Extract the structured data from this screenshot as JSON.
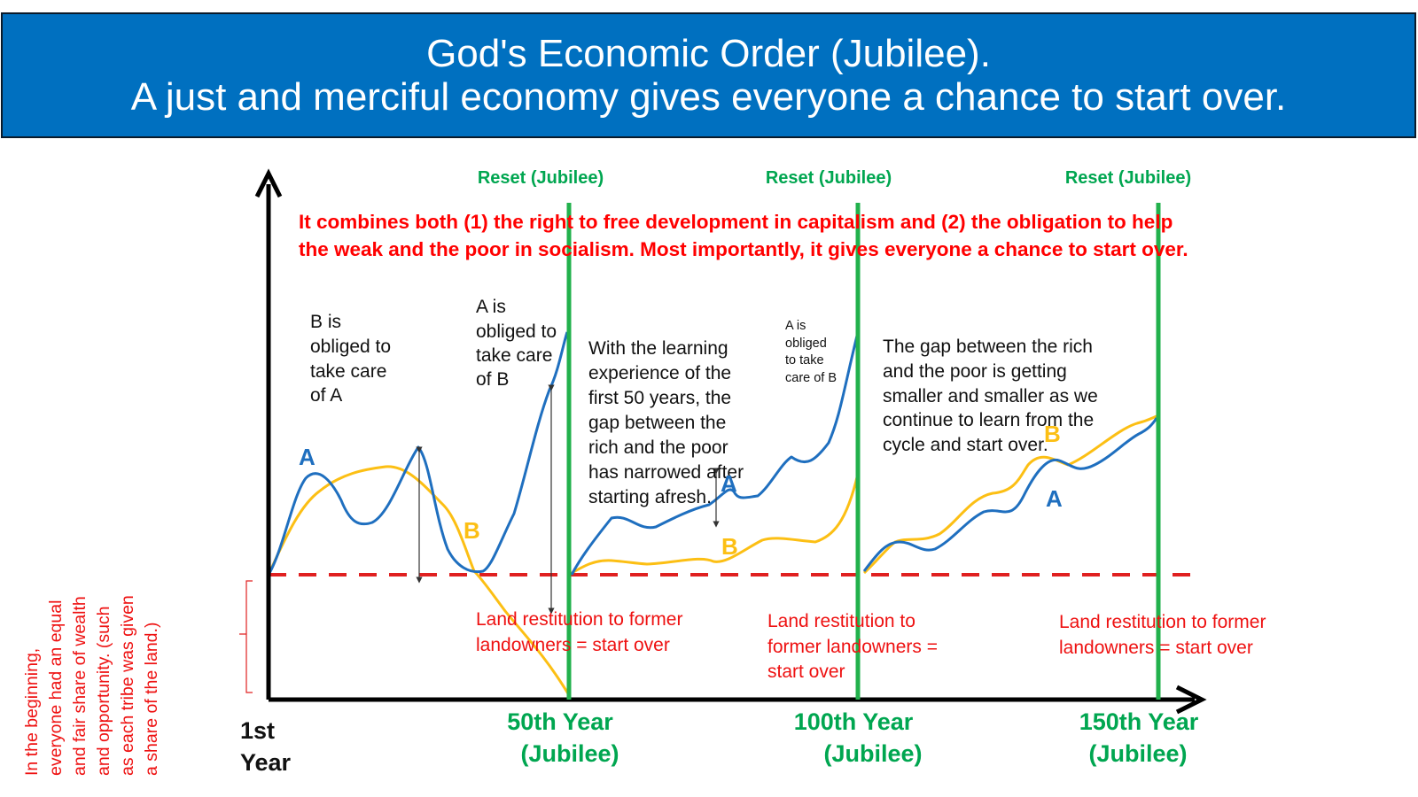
{
  "title": {
    "line1": "God's Economic Order (Jubilee).",
    "line2": "A just and merciful economy gives everyone a chance to start over."
  },
  "reset_labels": [
    "Reset (Jubilee)",
    "Reset (Jubilee)",
    "Reset (Jubilee)"
  ],
  "summary": {
    "line1": "It combines both (1) the right to free development in capitalism and (2) the obligation to help",
    "line2": "the weak and the poor in socialism. Most importantly, it gives everyone a chance to start over."
  },
  "notes": {
    "b_obliged": [
      "B is",
      "obliged to",
      "take care",
      "of A"
    ],
    "a_obliged": [
      "A is",
      "obliged to",
      "take care",
      "of B"
    ],
    "learning": [
      "With the learning",
      "experience of the",
      "first 50 years, the",
      "gap between the",
      "rich and the poor",
      "has narrowed after",
      "starting afresh."
    ],
    "a_obliged_small": [
      "A is",
      "obliged",
      "to take",
      "care of B"
    ],
    "gap": [
      "The gap between the rich",
      "and the poor is getting",
      "smaller and smaller as we",
      "continue to learn from the",
      "cycle and start over."
    ]
  },
  "restitution": {
    "first": [
      "Land restitution to former",
      "landowners = start over"
    ],
    "second": [
      "Land restitution to",
      "former landowners =",
      "start over"
    ],
    "third": [
      "Land restitution to former",
      "landowners = start over"
    ]
  },
  "beginning_note": [
    "In the beginning,",
    "everyone had an equal",
    "and fair share of wealth",
    "and opportunity. (such",
    "as each tribe was given",
    "a share of the land.)"
  ],
  "series_labels": {
    "a": "A",
    "b": "B"
  },
  "x_labels": {
    "start": [
      "1st",
      "Year"
    ],
    "y50": [
      "50th Year",
      "(Jubilee)"
    ],
    "y100": [
      "100th Year",
      "(Jubilee)"
    ],
    "y150": [
      "150th Year",
      "(Jubilee)"
    ]
  },
  "colors": {
    "banner": "#0070c0",
    "reset_green": "#00a650",
    "jubilee_line": "#22b14c",
    "summary_red": "#ff0000",
    "note_red": "#ee1111",
    "series_a": "#1f6fbf",
    "series_b": "#fcbf14",
    "baseline": "#e02020",
    "axis": "#000000"
  }
}
